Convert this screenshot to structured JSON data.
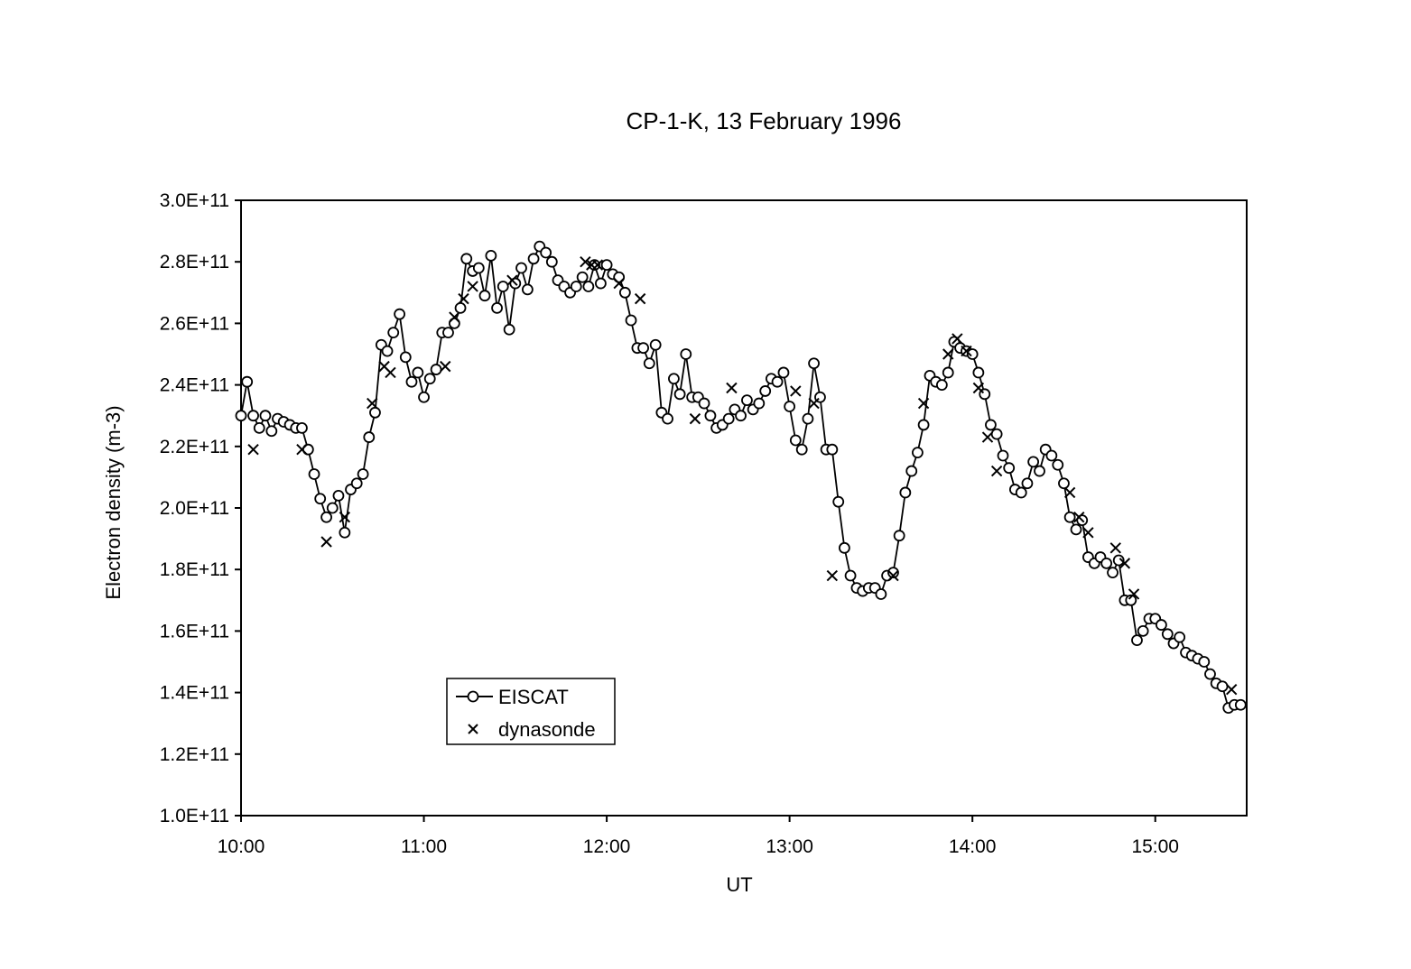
{
  "chart_data": {
    "type": "line",
    "title": "CP-1-K, 13 February 1996",
    "xlabel": "UT",
    "ylabel": "Electron density (m-3)",
    "x_unit": "hours UT",
    "xlim": [
      10.0,
      15.5
    ],
    "ylim": [
      100000000000.0,
      300000000000.0
    ],
    "x_ticks": [
      {
        "value": 10,
        "label": "10:00"
      },
      {
        "value": 11,
        "label": "11:00"
      },
      {
        "value": 12,
        "label": "12:00"
      },
      {
        "value": 13,
        "label": "13:00"
      },
      {
        "value": 14,
        "label": "14:00"
      },
      {
        "value": 15,
        "label": "15:00"
      }
    ],
    "y_ticks": [
      {
        "value": 100000000000.0,
        "label": "1.0E+11"
      },
      {
        "value": 120000000000.0,
        "label": "1.2E+11"
      },
      {
        "value": 140000000000.0,
        "label": "1.4E+11"
      },
      {
        "value": 160000000000.0,
        "label": "1.6E+11"
      },
      {
        "value": 180000000000.0,
        "label": "1.8E+11"
      },
      {
        "value": 200000000000.0,
        "label": "2.0E+11"
      },
      {
        "value": 220000000000.0,
        "label": "2.2E+11"
      },
      {
        "value": 240000000000.0,
        "label": "2.4E+11"
      },
      {
        "value": 260000000000.0,
        "label": "2.6E+11"
      },
      {
        "value": 280000000000.0,
        "label": "2.8E+11"
      },
      {
        "value": 300000000000.0,
        "label": "3.0E+11"
      }
    ],
    "grid": false,
    "legend_position": "lower-left",
    "series": [
      {
        "name": "EISCAT",
        "marker": "circle",
        "line": true,
        "points": [
          [
            10.0,
            230000000000.0
          ],
          [
            10.033,
            241000000000.0
          ],
          [
            10.067,
            230000000000.0
          ],
          [
            10.1,
            226000000000.0
          ],
          [
            10.133,
            230000000000.0
          ],
          [
            10.167,
            225000000000.0
          ],
          [
            10.2,
            229000000000.0
          ],
          [
            10.233,
            228000000000.0
          ],
          [
            10.267,
            227000000000.0
          ],
          [
            10.3,
            226000000000.0
          ],
          [
            10.333,
            226000000000.0
          ],
          [
            10.367,
            219000000000.0
          ],
          [
            10.4,
            211000000000.0
          ],
          [
            10.433,
            203000000000.0
          ],
          [
            10.467,
            197000000000.0
          ],
          [
            10.5,
            200000000000.0
          ],
          [
            10.533,
            204000000000.0
          ],
          [
            10.567,
            192000000000.0
          ],
          [
            10.6,
            206000000000.0
          ],
          [
            10.633,
            208000000000.0
          ],
          [
            10.667,
            211000000000.0
          ],
          [
            10.7,
            223000000000.0
          ],
          [
            10.733,
            231000000000.0
          ],
          [
            10.767,
            253000000000.0
          ],
          [
            10.8,
            251000000000.0
          ],
          [
            10.833,
            257000000000.0
          ],
          [
            10.867,
            263000000000.0
          ],
          [
            10.9,
            249000000000.0
          ],
          [
            10.933,
            241000000000.0
          ],
          [
            10.967,
            244000000000.0
          ],
          [
            11.0,
            236000000000.0
          ],
          [
            11.033,
            242000000000.0
          ],
          [
            11.067,
            245000000000.0
          ],
          [
            11.1,
            257000000000.0
          ],
          [
            11.133,
            257000000000.0
          ],
          [
            11.167,
            260000000000.0
          ],
          [
            11.2,
            265000000000.0
          ],
          [
            11.233,
            281000000000.0
          ],
          [
            11.267,
            277000000000.0
          ],
          [
            11.3,
            278000000000.0
          ],
          [
            11.333,
            269000000000.0
          ],
          [
            11.367,
            282000000000.0
          ],
          [
            11.4,
            265000000000.0
          ],
          [
            11.433,
            272000000000.0
          ],
          [
            11.467,
            258000000000.0
          ],
          [
            11.5,
            273000000000.0
          ],
          [
            11.533,
            278000000000.0
          ],
          [
            11.567,
            271000000000.0
          ],
          [
            11.6,
            281000000000.0
          ],
          [
            11.633,
            285000000000.0
          ],
          [
            11.667,
            283000000000.0
          ],
          [
            11.7,
            280000000000.0
          ],
          [
            11.733,
            274000000000.0
          ],
          [
            11.767,
            272000000000.0
          ],
          [
            11.8,
            270000000000.0
          ],
          [
            11.833,
            272000000000.0
          ],
          [
            11.867,
            275000000000.0
          ],
          [
            11.9,
            272000000000.0
          ],
          [
            11.933,
            279000000000.0
          ],
          [
            11.967,
            273000000000.0
          ],
          [
            12.0,
            279000000000.0
          ],
          [
            12.033,
            276000000000.0
          ],
          [
            12.067,
            275000000000.0
          ],
          [
            12.1,
            270000000000.0
          ],
          [
            12.133,
            261000000000.0
          ],
          [
            12.167,
            252000000000.0
          ],
          [
            12.2,
            252000000000.0
          ],
          [
            12.233,
            247000000000.0
          ],
          [
            12.267,
            253000000000.0
          ],
          [
            12.3,
            231000000000.0
          ],
          [
            12.333,
            229000000000.0
          ],
          [
            12.367,
            242000000000.0
          ],
          [
            12.4,
            237000000000.0
          ],
          [
            12.433,
            250000000000.0
          ],
          [
            12.467,
            236000000000.0
          ],
          [
            12.5,
            236000000000.0
          ],
          [
            12.533,
            234000000000.0
          ],
          [
            12.567,
            230000000000.0
          ],
          [
            12.6,
            226000000000.0
          ],
          [
            12.633,
            227000000000.0
          ],
          [
            12.667,
            229000000000.0
          ],
          [
            12.7,
            232000000000.0
          ],
          [
            12.733,
            230000000000.0
          ],
          [
            12.767,
            235000000000.0
          ],
          [
            12.8,
            232000000000.0
          ],
          [
            12.833,
            234000000000.0
          ],
          [
            12.867,
            238000000000.0
          ],
          [
            12.9,
            242000000000.0
          ],
          [
            12.933,
            241000000000.0
          ],
          [
            12.967,
            244000000000.0
          ],
          [
            13.0,
            233000000000.0
          ],
          [
            13.033,
            222000000000.0
          ],
          [
            13.067,
            219000000000.0
          ],
          [
            13.1,
            229000000000.0
          ],
          [
            13.133,
            247000000000.0
          ],
          [
            13.167,
            236000000000.0
          ],
          [
            13.2,
            219000000000.0
          ],
          [
            13.233,
            219000000000.0
          ],
          [
            13.267,
            202000000000.0
          ],
          [
            13.3,
            187000000000.0
          ],
          [
            13.333,
            178000000000.0
          ],
          [
            13.367,
            174000000000.0
          ],
          [
            13.4,
            173000000000.0
          ],
          [
            13.433,
            174000000000.0
          ],
          [
            13.467,
            174000000000.0
          ],
          [
            13.5,
            172000000000.0
          ],
          [
            13.533,
            178000000000.0
          ],
          [
            13.567,
            179000000000.0
          ],
          [
            13.6,
            191000000000.0
          ],
          [
            13.633,
            205000000000.0
          ],
          [
            13.667,
            212000000000.0
          ],
          [
            13.7,
            218000000000.0
          ],
          [
            13.733,
            227000000000.0
          ],
          [
            13.767,
            243000000000.0
          ],
          [
            13.8,
            241000000000.0
          ],
          [
            13.833,
            240000000000.0
          ],
          [
            13.867,
            244000000000.0
          ],
          [
            13.9,
            254000000000.0
          ],
          [
            13.933,
            252000000000.0
          ],
          [
            13.967,
            251000000000.0
          ],
          [
            14.0,
            250000000000.0
          ],
          [
            14.033,
            244000000000.0
          ],
          [
            14.067,
            237000000000.0
          ],
          [
            14.1,
            227000000000.0
          ],
          [
            14.133,
            224000000000.0
          ],
          [
            14.167,
            217000000000.0
          ],
          [
            14.2,
            213000000000.0
          ],
          [
            14.233,
            206000000000.0
          ],
          [
            14.267,
            205000000000.0
          ],
          [
            14.3,
            208000000000.0
          ],
          [
            14.333,
            215000000000.0
          ],
          [
            14.367,
            212000000000.0
          ],
          [
            14.4,
            219000000000.0
          ],
          [
            14.433,
            217000000000.0
          ],
          [
            14.467,
            214000000000.0
          ],
          [
            14.5,
            208000000000.0
          ],
          [
            14.533,
            197000000000.0
          ],
          [
            14.567,
            193000000000.0
          ],
          [
            14.6,
            196000000000.0
          ],
          [
            14.633,
            184000000000.0
          ],
          [
            14.667,
            182000000000.0
          ],
          [
            14.7,
            184000000000.0
          ],
          [
            14.733,
            182000000000.0
          ],
          [
            14.767,
            179000000000.0
          ],
          [
            14.8,
            183000000000.0
          ],
          [
            14.833,
            170000000000.0
          ],
          [
            14.867,
            170000000000.0
          ],
          [
            14.9,
            157000000000.0
          ],
          [
            14.933,
            160000000000.0
          ],
          [
            14.967,
            164000000000.0
          ],
          [
            15.0,
            164000000000.0
          ],
          [
            15.033,
            162000000000.0
          ],
          [
            15.067,
            159000000000.0
          ],
          [
            15.1,
            156000000000.0
          ],
          [
            15.133,
            158000000000.0
          ],
          [
            15.167,
            153000000000.0
          ],
          [
            15.2,
            152000000000.0
          ],
          [
            15.233,
            151000000000.0
          ],
          [
            15.267,
            150000000000.0
          ],
          [
            15.3,
            146000000000.0
          ],
          [
            15.333,
            143000000000.0
          ],
          [
            15.367,
            142000000000.0
          ],
          [
            15.4,
            135000000000.0
          ],
          [
            15.433,
            136000000000.0
          ],
          [
            15.467,
            136000000000.0
          ]
        ]
      },
      {
        "name": "dynasonde",
        "marker": "x",
        "line": false,
        "points": [
          [
            10.067,
            219000000000.0
          ],
          [
            10.333,
            219000000000.0
          ],
          [
            10.467,
            189000000000.0
          ],
          [
            10.567,
            197000000000.0
          ],
          [
            10.717,
            234000000000.0
          ],
          [
            10.783,
            246000000000.0
          ],
          [
            10.817,
            244000000000.0
          ],
          [
            11.117,
            246000000000.0
          ],
          [
            11.167,
            262000000000.0
          ],
          [
            11.217,
            268000000000.0
          ],
          [
            11.267,
            272000000000.0
          ],
          [
            11.483,
            274000000000.0
          ],
          [
            11.883,
            280000000000.0
          ],
          [
            11.917,
            279000000000.0
          ],
          [
            11.95,
            279000000000.0
          ],
          [
            12.067,
            273000000000.0
          ],
          [
            12.183,
            268000000000.0
          ],
          [
            12.483,
            229000000000.0
          ],
          [
            12.683,
            239000000000.0
          ],
          [
            13.033,
            238000000000.0
          ],
          [
            13.133,
            234000000000.0
          ],
          [
            13.233,
            178000000000.0
          ],
          [
            13.567,
            178000000000.0
          ],
          [
            13.733,
            234000000000.0
          ],
          [
            13.867,
            250000000000.0
          ],
          [
            13.917,
            255000000000.0
          ],
          [
            13.967,
            251000000000.0
          ],
          [
            14.033,
            239000000000.0
          ],
          [
            14.083,
            223000000000.0
          ],
          [
            14.133,
            212000000000.0
          ],
          [
            14.533,
            205000000000.0
          ],
          [
            14.583,
            197000000000.0
          ],
          [
            14.633,
            192000000000.0
          ],
          [
            14.783,
            187000000000.0
          ],
          [
            14.833,
            182000000000.0
          ],
          [
            14.883,
            172000000000.0
          ],
          [
            15.417,
            141000000000.0
          ]
        ]
      }
    ],
    "legend": {
      "entries": [
        {
          "label": "EISCAT",
          "marker": "circle-line"
        },
        {
          "label": "dynasonde",
          "marker": "x"
        }
      ]
    }
  }
}
